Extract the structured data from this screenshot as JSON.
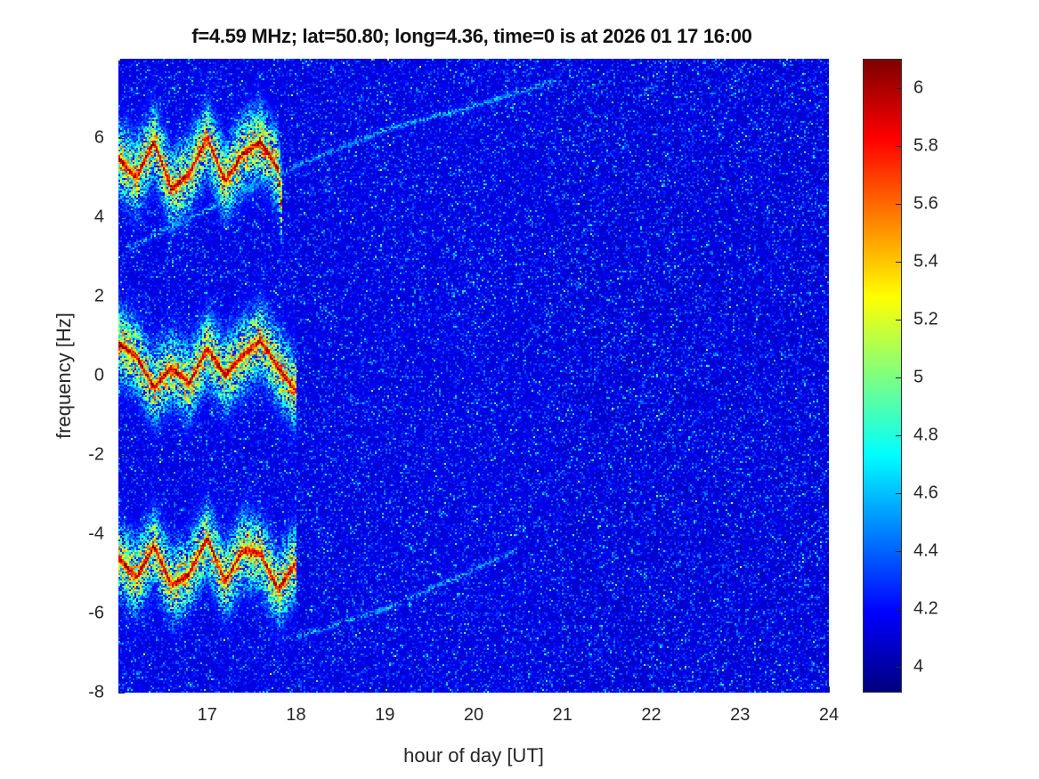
{
  "chart_data": {
    "type": "heatmap",
    "title": "f=4.59 MHz;  lat=50.80; long=4.36, time=0 is at 2026 01 17 16:00",
    "xlabel": "hour of day [UT]",
    "ylabel": "frequency [Hz]",
    "xlim": [
      16,
      24
    ],
    "ylim": [
      -8,
      8
    ],
    "xticks": [
      "17",
      "18",
      "19",
      "20",
      "21",
      "22",
      "23",
      "24"
    ],
    "yticks": [
      "-8",
      "-6",
      "-4",
      "-2",
      "0",
      "2",
      "4",
      "6"
    ],
    "colorbar": {
      "colormap": "jet",
      "clim": [
        3.91,
        6.1
      ],
      "ticks": [
        "4",
        "4.2",
        "4.4",
        "4.6",
        "4.8",
        "5",
        "5.2",
        "5.4",
        "5.6",
        "5.8",
        "6"
      ]
    },
    "background_level": 4.15,
    "series": [
      {
        "name": "central echo band",
        "peak": 6.1,
        "x": [
          16.0,
          16.2,
          16.4,
          16.6,
          16.8,
          17.0,
          17.2,
          17.4,
          17.6,
          17.8,
          18.0
        ],
        "y": [
          0.8,
          0.5,
          -0.3,
          0.2,
          -0.2,
          0.7,
          0.0,
          0.5,
          0.9,
          0.2,
          -0.4
        ]
      },
      {
        "name": "upper alias band",
        "peak": 6.1,
        "x": [
          16.0,
          16.2,
          16.4,
          16.6,
          16.8,
          17.0,
          17.2,
          17.4,
          17.6,
          17.8,
          17.85
        ],
        "y": [
          5.5,
          5.0,
          5.9,
          4.7,
          5.1,
          6.0,
          4.9,
          5.6,
          5.9,
          5.2,
          4.0
        ]
      },
      {
        "name": "lower alias band",
        "peak": 6.1,
        "x": [
          16.0,
          16.2,
          16.4,
          16.6,
          16.8,
          17.0,
          17.2,
          17.4,
          17.6,
          17.8,
          18.0
        ],
        "y": [
          -4.6,
          -5.1,
          -4.3,
          -5.3,
          -5.0,
          -4.1,
          -5.2,
          -4.4,
          -4.5,
          -5.4,
          -4.7
        ]
      },
      {
        "name": "faint upper diagonal",
        "peak": 4.6,
        "x": [
          16.1,
          18.0,
          19.0,
          20.0,
          21.0
        ],
        "y": [
          3.2,
          5.3,
          6.2,
          6.8,
          7.5
        ]
      },
      {
        "name": "faint lower diagonal",
        "peak": 4.6,
        "x": [
          18.0,
          19.0,
          20.5
        ],
        "y": [
          -6.6,
          -5.9,
          -4.4
        ]
      }
    ]
  }
}
